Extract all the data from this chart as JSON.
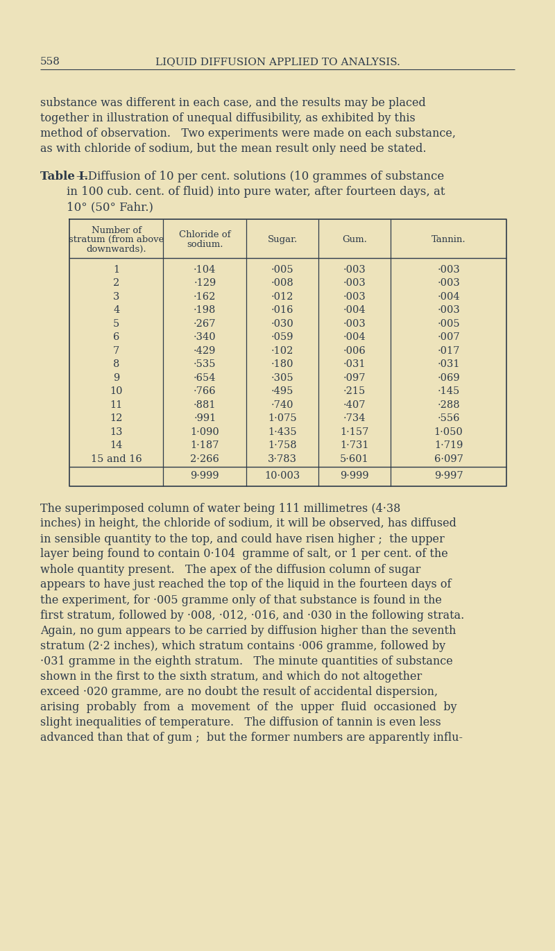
{
  "bg_color": "#ede3bb",
  "text_color": "#2d3a4a",
  "page_number": "558",
  "page_header": "LIQUID DIFFUSION APPLIED TO ANALYSIS.",
  "intro_text": "substance was different in each case, and the results may be placed together in illustration of unequal diffusibility, as exhibited by this method of observation.   Two experiments were made on each substance, as with chloride of sodium, but the mean result only need be stated.",
  "table_caption_bold": "Table I.",
  "table_caption_rest": "—Diffusion of 10 per cent. solutions (10 grammes of substance",
  "table_caption_line2": "in 100 cub. cent. of fluid) into pure water, after fourteen days, at",
  "table_caption_line3": "10° (50° Fahr.)",
  "col_headers": [
    "Number of\nstratum (from above\ndownwards).",
    "Chloride of\nsodium.",
    "Sugar.",
    "Gum.",
    "Tannin."
  ],
  "rows": [
    [
      "1",
      "·104",
      "·005",
      "·003",
      "·003"
    ],
    [
      "2",
      "·129",
      "·008",
      "·003",
      "·003"
    ],
    [
      "3",
      "·162",
      "·012",
      "·003",
      "·004"
    ],
    [
      "4",
      "·198",
      "·016",
      "·004",
      "·003"
    ],
    [
      "5",
      "·267",
      "·030",
      "·003",
      "·005"
    ],
    [
      "6",
      "·340",
      "·059",
      "·004",
      "·007"
    ],
    [
      "7",
      "·429",
      "·102",
      "·006",
      "·017"
    ],
    [
      "8",
      "·535",
      "·180",
      "·031",
      "·031"
    ],
    [
      "9",
      "·654",
      "·305",
      "·097",
      "·069"
    ],
    [
      "10",
      "·766",
      "·495",
      "·215",
      "·145"
    ],
    [
      "11",
      "·881",
      "·740",
      "·407",
      "·288"
    ],
    [
      "12",
      "·991",
      "1·075",
      "·734",
      "·556"
    ],
    [
      "13",
      "1·090",
      "1·435",
      "1·157",
      "1·050"
    ],
    [
      "14",
      "1·187",
      "1·758",
      "1·731",
      "1·719"
    ],
    [
      "15 and 16",
      "2·266",
      "3·783",
      "5·601",
      "6·097"
    ]
  ],
  "totals": [
    "",
    "9·999",
    "10·003",
    "9·999",
    "9·997"
  ],
  "body_lines": [
    "The superimposed column of water being 111 millimetres (4·38",
    "inches) in height, the chloride of sodium, it will be observed, has diffused",
    "in sensible quantity to the top, and could have risen higher ;  the upper",
    "layer being found to contain 0·104  gramme of salt, or 1 per cent. of the",
    "whole quantity present.   The apex of the diffusion column of sugar",
    "appears to have just reached the top of the liquid in the fourteen days of",
    "the experiment, for ·005 gramme only of that substance is found in the",
    "first stratum, followed by ·008, ·012, ·016, and ·030 in the following strata.",
    "Again, no gum appears to be carried by diffusion higher than the seventh",
    "stratum (2·2 inches), which stratum contains ·006 gramme, followed by",
    "·031 gramme in the eighth stratum.   The minute quantities of substance",
    "shown in the first to the sixth stratum, and which do not altogether",
    "exceed ·020 gramme, are no doubt the result of accidental dispersion,",
    "arising  probably  from  a  movement  of  the  upper  fluid  occasioned  by",
    "slight inequalities of temperature.   The diffusion of tannin is even less",
    "advanced than that of gum ;  but the former numbers are apparently influ-"
  ]
}
